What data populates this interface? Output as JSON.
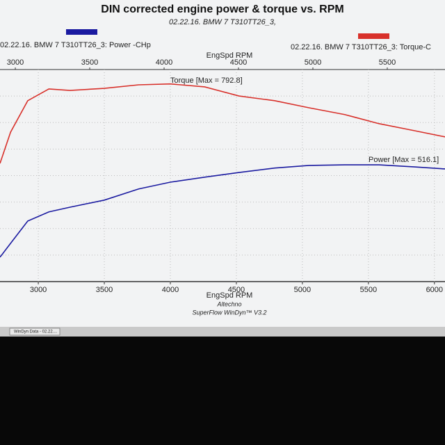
{
  "chart_data": {
    "type": "line",
    "title": "DIN corrected engine power & torque vs. RPM",
    "subtitle": "02.22.16. BMW 7 T310TT26_3,",
    "xlabel": "EngSpd RPM",
    "x2label": "EngSpd RPM",
    "footer": [
      "Altechno",
      "SuperFlow WinDyn™ V3.2"
    ],
    "taskbar": "WinDyn Data - 02.22....",
    "x": [
      2710,
      2790,
      2920,
      3080,
      3240,
      3500,
      3760,
      4000,
      4260,
      4520,
      4790,
      5050,
      5320,
      5580,
      5850,
      6080
    ],
    "series": [
      {
        "name": "02.22.16. BMW 7 T310TT26_3: Torque-C",
        "color": "#d8302a",
        "annotation": "Torque [Max = 792.8]",
        "values": [
          520,
          626,
          733,
          773,
          768,
          775,
          787,
          790,
          780,
          749,
          733,
          709,
          686,
          655,
          631,
          610
        ]
      },
      {
        "name": "02.22.16. BMW 7 T310TT26_3: Power -CHp",
        "color": "#1a1aa0",
        "annotation": "Power  [Max = 516.1]",
        "values": [
          201,
          248,
          324,
          355,
          371,
          395,
          433,
          456,
          473,
          489,
          504,
          513,
          515,
          515,
          508,
          501
        ]
      }
    ],
    "xlim": [
      2710,
      6080
    ],
    "xticks": [
      3000,
      3500,
      4000,
      4500,
      5000,
      5500,
      6000
    ],
    "x2lim": [
      2897,
      5888
    ],
    "x2ticks": [
      3000,
      3500,
      4000,
      4500,
      5000,
      5500
    ],
    "ylim": [
      118,
      839
    ],
    "grid": true
  }
}
